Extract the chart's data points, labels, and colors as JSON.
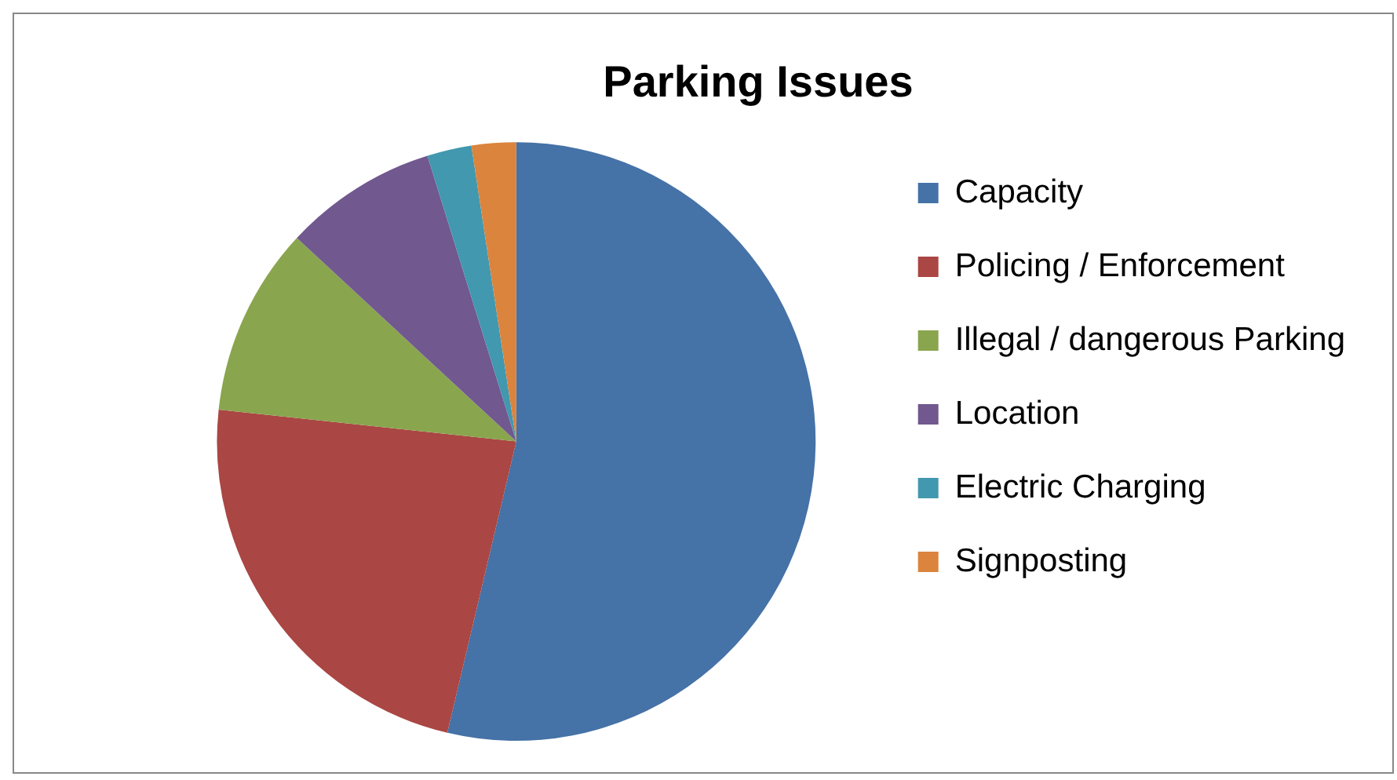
{
  "chart_data": {
    "type": "pie",
    "title": "Parking Issues",
    "categories": [
      "Capacity",
      "Policing / Enforcement",
      "Illegal / dangerous Parking",
      "Location",
      "Electric Charging",
      "Signposting"
    ],
    "values": [
      53.7,
      23,
      10.2,
      8.3,
      2.4,
      2.4
    ],
    "colors": [
      "#4572a7",
      "#aa4643",
      "#89a54e",
      "#71588f",
      "#4198af",
      "#db843d"
    ],
    "legend": "right"
  }
}
